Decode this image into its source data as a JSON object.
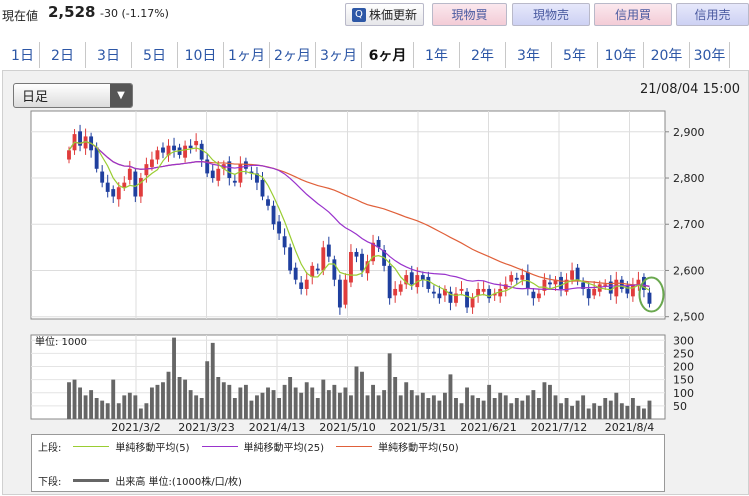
{
  "quote": {
    "label": "現在値",
    "price": "2,528",
    "change": "-30 (-1.17%)"
  },
  "buttons": {
    "refresh": "株価更新",
    "refresh_icon": "refresh-icon",
    "buy": "現物買",
    "sell": "現物売",
    "margin_buy": "信用買",
    "margin_sell": "信用売"
  },
  "tabs": [
    {
      "label": "1日"
    },
    {
      "label": "2日"
    },
    {
      "label": "3日"
    },
    {
      "label": "5日"
    },
    {
      "label": "10日"
    },
    {
      "label": "1ヶ月"
    },
    {
      "label": "2ヶ月"
    },
    {
      "label": "3ヶ月"
    },
    {
      "label": "6ヶ月",
      "active": true
    },
    {
      "label": "1年"
    },
    {
      "label": "2年"
    },
    {
      "label": "3年"
    },
    {
      "label": "5年"
    },
    {
      "label": "10年"
    },
    {
      "label": "20年"
    },
    {
      "label": "30年"
    }
  ],
  "chart_select": {
    "value": "日足"
  },
  "datetime": "21/08/04 15:00",
  "volume_unit": "単位: 1000",
  "legend": {
    "upper_label": "上段:",
    "lower_label": "下段:",
    "ma5": "単純移動平均(5)",
    "ma25": "単純移動平均(25)",
    "ma50": "単純移動平均(50)",
    "volume": "出来高 単位:(1000株/口/枚)",
    "colors": {
      "ma5": "#9acd32",
      "ma25": "#9933cc",
      "ma50": "#e0603a",
      "volume": "#666666",
      "up": "#e03c3c",
      "down": "#1f3f9e"
    }
  },
  "chart_data": [
    {
      "type": "candlestick",
      "price_ticks": [
        "2,900",
        "2,800",
        "2,700",
        "2,600",
        "2,500"
      ],
      "ylim": [
        2495,
        2945
      ],
      "x_labels": [
        "2021/3/2",
        "2021/3/23",
        "2021/4/13",
        "2021/5/10",
        "2021/5/31",
        "2021/6/21",
        "2021/7/12",
        "2021/8/4"
      ],
      "closes": [
        2860,
        2895,
        2870,
        2890,
        2860,
        2820,
        2790,
        2770,
        2760,
        2780,
        2790,
        2820,
        2760,
        2800,
        2830,
        2840,
        2860,
        2855,
        2870,
        2860,
        2850,
        2870,
        2865,
        2880,
        2840,
        2810,
        2800,
        2820,
        2830,
        2800,
        2790,
        2830,
        2820,
        2810,
        2790,
        2760,
        2740,
        2700,
        2680,
        2650,
        2600,
        2580,
        2560,
        2580,
        2610,
        2600,
        2650,
        2630,
        2580,
        2520,
        2580,
        2640,
        2630,
        2600,
        2620,
        2660,
        2650,
        2610,
        2540,
        2560,
        2570,
        2590,
        2570,
        2590,
        2580,
        2560,
        2550,
        2540,
        2560,
        2530,
        2550,
        2560,
        2520,
        2540,
        2560,
        2560,
        2540,
        2550,
        2560,
        2570,
        2590,
        2580,
        2590,
        2560,
        2540,
        2550,
        2580,
        2570,
        2580,
        2560,
        2580,
        2600,
        2580,
        2560,
        2540,
        2560,
        2570,
        2570,
        2550,
        2580,
        2560,
        2550,
        2570,
        2580,
        2558,
        2528
      ],
      "volume_ticks": [
        "300",
        "250",
        "200",
        "150",
        "100",
        "50"
      ],
      "volume_ylim": [
        0,
        320
      ],
      "volumes": [
        140,
        150,
        120,
        90,
        110,
        80,
        70,
        60,
        150,
        60,
        90,
        100,
        90,
        40,
        60,
        120,
        130,
        140,
        180,
        310,
        160,
        150,
        110,
        90,
        80,
        220,
        290,
        160,
        140,
        130,
        80,
        120,
        130,
        70,
        90,
        100,
        120,
        110,
        80,
        130,
        160,
        120,
        100,
        140,
        120,
        80,
        150,
        110,
        130,
        100,
        120,
        90,
        200,
        180,
        90,
        130,
        90,
        110,
        250,
        160,
        90,
        140,
        110,
        90,
        100,
        80,
        90,
        70,
        100,
        170,
        80,
        60,
        120,
        90,
        80,
        70,
        130,
        80,
        100,
        90,
        60,
        80,
        70,
        90,
        110,
        80,
        140,
        130,
        90,
        60,
        80,
        50,
        70,
        90,
        40,
        60,
        50,
        80,
        70,
        100,
        60,
        50,
        80,
        50,
        40,
        70
      ]
    }
  ]
}
